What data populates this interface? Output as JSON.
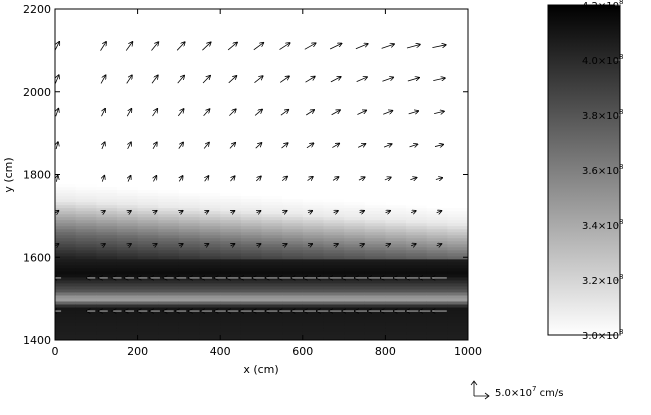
{
  "chart_data": {
    "type": "heatmap",
    "title": "",
    "xlabel": "x (cm)",
    "ylabel": "y (cm)",
    "xlim": [
      0,
      1000
    ],
    "ylim": [
      1400,
      2200
    ],
    "x_ticks": [
      {
        "value": 0,
        "label": "0"
      },
      {
        "value": 200,
        "label": "200"
      },
      {
        "value": 400,
        "label": "400"
      },
      {
        "value": 600,
        "label": "600"
      },
      {
        "value": 800,
        "label": "800"
      },
      {
        "value": 1000,
        "label": "1000"
      }
    ],
    "y_ticks": [
      {
        "value": 1400,
        "label": "1400"
      },
      {
        "value": 1600,
        "label": "1600"
      },
      {
        "value": 1800,
        "label": "1800"
      },
      {
        "value": 2000,
        "label": "2000"
      },
      {
        "value": 2200,
        "label": "2200"
      }
    ],
    "colorbar": {
      "range": [
        300000000.0,
        420000000.0
      ],
      "colors": {
        "low": "#ffffff",
        "high": "#000000"
      },
      "ticks": [
        {
          "value": 300000000.0,
          "mantissa": "3.0×10",
          "exp": "8"
        },
        {
          "value": 320000000.0,
          "mantissa": "3.2×10",
          "exp": "8"
        },
        {
          "value": 340000000.0,
          "mantissa": "3.4×10",
          "exp": "8"
        },
        {
          "value": 360000000.0,
          "mantissa": "3.6×10",
          "exp": "8"
        },
        {
          "value": 380000000.0,
          "mantissa": "3.8×10",
          "exp": "8"
        },
        {
          "value": 400000000.0,
          "mantissa": "4.0×10",
          "exp": "8"
        },
        {
          "value": 420000000.0,
          "mantissa": "4.2×10",
          "exp": "8"
        }
      ]
    },
    "field_profile": {
      "y": [
        1400,
        1480,
        1500,
        1520,
        1560,
        1600,
        1660,
        1700,
        1740,
        1780,
        2200
      ],
      "value": [
        405000000.0,
        410000000.0,
        340000000.0,
        380000000.0,
        415000000.0,
        405000000.0,
        370000000.0,
        340000000.0,
        310000000.0,
        300000000.0,
        300000000.0
      ],
      "interface_slope_cm_per_cm": -0.06
    },
    "vector_field": {
      "x": [
        5,
        87,
        117,
        150,
        180,
        212,
        242,
        275,
        305,
        337,
        367,
        400,
        430,
        462,
        493,
        525,
        556,
        588,
        618,
        650,
        680,
        712,
        743,
        775,
        806,
        838,
        868,
        900,
        930
      ],
      "y": [
        1470,
        1550,
        1630,
        1710,
        1790,
        1870,
        1950,
        2030,
        2110
      ],
      "reference": {
        "magnitude": 50000000.0,
        "unit": "cm/s"
      },
      "note": "upper region: up/right flow strengthening with x and y; lower region: leftward flow"
    },
    "reference_arrow_label": {
      "mantissa": "5.0×10",
      "exp": "7",
      "unit": " cm/s"
    }
  }
}
